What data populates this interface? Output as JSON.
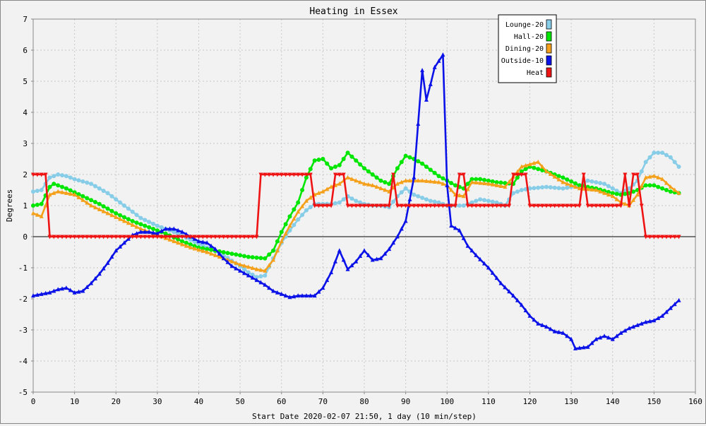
{
  "chart_data": {
    "type": "line",
    "title": "Heating in Essex",
    "xlabel": "Start Date 2020-02-07 21:50, 1 day (10 min/step)",
    "ylabel": "Degrees",
    "xlim": [
      0,
      160
    ],
    "ylim": [
      -5,
      7
    ],
    "x_ticks": [
      0,
      10,
      20,
      30,
      40,
      50,
      60,
      70,
      80,
      90,
      100,
      110,
      120,
      130,
      140,
      150,
      160
    ],
    "y_ticks": [
      -5,
      -4,
      -3,
      -2,
      -1,
      0,
      1,
      2,
      3,
      4,
      5,
      6,
      7
    ],
    "grid": true,
    "legend_position": "top-right",
    "series": [
      {
        "name": "Lounge-20",
        "color": "#87cde8",
        "marker": "circle",
        "points": [
          [
            0,
            1.45
          ],
          [
            2,
            1.5
          ],
          [
            4,
            1.9
          ],
          [
            6,
            2.0
          ],
          [
            8,
            1.95
          ],
          [
            10,
            1.85
          ],
          [
            14,
            1.7
          ],
          [
            18,
            1.4
          ],
          [
            22,
            1.0
          ],
          [
            26,
            0.6
          ],
          [
            30,
            0.35
          ],
          [
            34,
            0.15
          ],
          [
            38,
            -0.1
          ],
          [
            42,
            -0.35
          ],
          [
            46,
            -0.6
          ],
          [
            50,
            -0.95
          ],
          [
            52,
            -1.15
          ],
          [
            54,
            -1.3
          ],
          [
            56,
            -1.25
          ],
          [
            58,
            -0.7
          ],
          [
            60,
            -0.2
          ],
          [
            62,
            0.2
          ],
          [
            64,
            0.55
          ],
          [
            66,
            0.85
          ],
          [
            68,
            1.05
          ],
          [
            70,
            1.05
          ],
          [
            72,
            1.05
          ],
          [
            74,
            1.1
          ],
          [
            76,
            1.3
          ],
          [
            78,
            1.15
          ],
          [
            80,
            1.05
          ],
          [
            82,
            1.0
          ],
          [
            84,
            1.0
          ],
          [
            86,
            0.95
          ],
          [
            88,
            1.3
          ],
          [
            90,
            1.55
          ],
          [
            92,
            1.35
          ],
          [
            94,
            1.25
          ],
          [
            96,
            1.15
          ],
          [
            98,
            1.1
          ],
          [
            100,
            1.0
          ],
          [
            102,
            1.0
          ],
          [
            104,
            1.0
          ],
          [
            106,
            1.1
          ],
          [
            108,
            1.2
          ],
          [
            112,
            1.1
          ],
          [
            114,
            1.0
          ],
          [
            116,
            1.4
          ],
          [
            118,
            1.5
          ],
          [
            120,
            1.55
          ],
          [
            124,
            1.6
          ],
          [
            128,
            1.55
          ],
          [
            132,
            1.65
          ],
          [
            134,
            1.8
          ],
          [
            136,
            1.75
          ],
          [
            138,
            1.7
          ],
          [
            140,
            1.55
          ],
          [
            142,
            1.4
          ],
          [
            144,
            1.55
          ],
          [
            146,
            1.8
          ],
          [
            148,
            2.4
          ],
          [
            150,
            2.7
          ],
          [
            152,
            2.7
          ],
          [
            154,
            2.55
          ],
          [
            156,
            2.25
          ]
        ]
      },
      {
        "name": "Hall-20",
        "color": "#00e600",
        "marker": "circle",
        "points": [
          [
            0,
            1.0
          ],
          [
            2,
            1.05
          ],
          [
            4,
            1.6
          ],
          [
            5,
            1.7
          ],
          [
            8,
            1.55
          ],
          [
            12,
            1.3
          ],
          [
            16,
            1.05
          ],
          [
            20,
            0.75
          ],
          [
            24,
            0.5
          ],
          [
            28,
            0.3
          ],
          [
            32,
            0.1
          ],
          [
            36,
            -0.15
          ],
          [
            40,
            -0.35
          ],
          [
            44,
            -0.45
          ],
          [
            48,
            -0.55
          ],
          [
            52,
            -0.65
          ],
          [
            56,
            -0.7
          ],
          [
            58,
            -0.45
          ],
          [
            60,
            0.15
          ],
          [
            62,
            0.65
          ],
          [
            64,
            1.1
          ],
          [
            66,
            1.9
          ],
          [
            68,
            2.45
          ],
          [
            70,
            2.5
          ],
          [
            72,
            2.2
          ],
          [
            74,
            2.3
          ],
          [
            76,
            2.7
          ],
          [
            78,
            2.45
          ],
          [
            80,
            2.2
          ],
          [
            82,
            2.0
          ],
          [
            84,
            1.8
          ],
          [
            86,
            1.7
          ],
          [
            88,
            2.2
          ],
          [
            90,
            2.6
          ],
          [
            92,
            2.5
          ],
          [
            94,
            2.35
          ],
          [
            96,
            2.15
          ],
          [
            98,
            1.95
          ],
          [
            100,
            1.8
          ],
          [
            102,
            1.65
          ],
          [
            104,
            1.55
          ],
          [
            106,
            1.85
          ],
          [
            108,
            1.85
          ],
          [
            112,
            1.75
          ],
          [
            116,
            1.7
          ],
          [
            118,
            2.1
          ],
          [
            120,
            2.25
          ],
          [
            124,
            2.1
          ],
          [
            128,
            1.9
          ],
          [
            132,
            1.65
          ],
          [
            136,
            1.55
          ],
          [
            140,
            1.4
          ],
          [
            142,
            1.35
          ],
          [
            144,
            1.4
          ],
          [
            146,
            1.5
          ],
          [
            148,
            1.65
          ],
          [
            150,
            1.65
          ],
          [
            152,
            1.55
          ],
          [
            154,
            1.45
          ],
          [
            156,
            1.4
          ]
        ]
      },
      {
        "name": "Dining-20",
        "color": "#f5a01a",
        "marker": "triangle",
        "points": [
          [
            0,
            0.75
          ],
          [
            2,
            0.65
          ],
          [
            4,
            1.35
          ],
          [
            6,
            1.45
          ],
          [
            10,
            1.35
          ],
          [
            14,
            1.0
          ],
          [
            18,
            0.75
          ],
          [
            22,
            0.5
          ],
          [
            26,
            0.25
          ],
          [
            30,
            0.05
          ],
          [
            34,
            -0.15
          ],
          [
            38,
            -0.35
          ],
          [
            42,
            -0.5
          ],
          [
            46,
            -0.7
          ],
          [
            50,
            -0.9
          ],
          [
            54,
            -1.05
          ],
          [
            56,
            -1.1
          ],
          [
            58,
            -0.75
          ],
          [
            60,
            -0.15
          ],
          [
            62,
            0.35
          ],
          [
            64,
            0.8
          ],
          [
            66,
            1.15
          ],
          [
            68,
            1.35
          ],
          [
            70,
            1.45
          ],
          [
            72,
            1.6
          ],
          [
            74,
            1.7
          ],
          [
            76,
            1.9
          ],
          [
            78,
            1.8
          ],
          [
            80,
            1.7
          ],
          [
            82,
            1.65
          ],
          [
            84,
            1.55
          ],
          [
            86,
            1.45
          ],
          [
            88,
            1.7
          ],
          [
            90,
            1.8
          ],
          [
            94,
            1.8
          ],
          [
            98,
            1.75
          ],
          [
            100,
            1.65
          ],
          [
            102,
            1.35
          ],
          [
            104,
            1.3
          ],
          [
            106,
            1.75
          ],
          [
            110,
            1.7
          ],
          [
            114,
            1.6
          ],
          [
            118,
            2.25
          ],
          [
            122,
            2.4
          ],
          [
            124,
            2.1
          ],
          [
            128,
            1.75
          ],
          [
            132,
            1.55
          ],
          [
            136,
            1.5
          ],
          [
            140,
            1.3
          ],
          [
            142,
            1.1
          ],
          [
            144,
            1.0
          ],
          [
            146,
            1.35
          ],
          [
            148,
            1.9
          ],
          [
            150,
            1.95
          ],
          [
            152,
            1.85
          ],
          [
            154,
            1.6
          ],
          [
            156,
            1.4
          ]
        ]
      },
      {
        "name": "Outside-10",
        "color": "#0a12e8",
        "marker": "triangle",
        "points": [
          [
            0,
            -1.9
          ],
          [
            2,
            -1.85
          ],
          [
            4,
            -1.8
          ],
          [
            6,
            -1.7
          ],
          [
            8,
            -1.65
          ],
          [
            10,
            -1.8
          ],
          [
            12,
            -1.75
          ],
          [
            14,
            -1.5
          ],
          [
            16,
            -1.2
          ],
          [
            18,
            -0.85
          ],
          [
            20,
            -0.45
          ],
          [
            22,
            -0.2
          ],
          [
            24,
            0.05
          ],
          [
            26,
            0.15
          ],
          [
            28,
            0.15
          ],
          [
            30,
            0.1
          ],
          [
            32,
            0.25
          ],
          [
            34,
            0.25
          ],
          [
            36,
            0.15
          ],
          [
            38,
            0.0
          ],
          [
            40,
            -0.15
          ],
          [
            42,
            -0.2
          ],
          [
            44,
            -0.4
          ],
          [
            46,
            -0.7
          ],
          [
            48,
            -0.95
          ],
          [
            50,
            -1.1
          ],
          [
            52,
            -1.25
          ],
          [
            54,
            -1.4
          ],
          [
            56,
            -1.55
          ],
          [
            58,
            -1.75
          ],
          [
            60,
            -1.85
          ],
          [
            62,
            -1.95
          ],
          [
            64,
            -1.9
          ],
          [
            66,
            -1.9
          ],
          [
            68,
            -1.9
          ],
          [
            70,
            -1.65
          ],
          [
            72,
            -1.15
          ],
          [
            73,
            -0.8
          ],
          [
            74,
            -0.45
          ],
          [
            75,
            -0.75
          ],
          [
            76,
            -1.05
          ],
          [
            78,
            -0.8
          ],
          [
            80,
            -0.45
          ],
          [
            82,
            -0.75
          ],
          [
            84,
            -0.7
          ],
          [
            86,
            -0.4
          ],
          [
            88,
            0.0
          ],
          [
            90,
            0.5
          ],
          [
            92,
            1.9
          ],
          [
            94,
            5.35
          ],
          [
            95,
            4.4
          ],
          [
            96,
            4.9
          ],
          [
            97,
            5.45
          ],
          [
            99,
            5.85
          ],
          [
            100,
            1.65
          ],
          [
            101,
            0.35
          ],
          [
            103,
            0.2
          ],
          [
            105,
            -0.3
          ],
          [
            107,
            -0.6
          ],
          [
            110,
            -1.0
          ],
          [
            113,
            -1.5
          ],
          [
            116,
            -1.9
          ],
          [
            118,
            -2.2
          ],
          [
            120,
            -2.55
          ],
          [
            122,
            -2.8
          ],
          [
            124,
            -2.9
          ],
          [
            126,
            -3.05
          ],
          [
            128,
            -3.1
          ],
          [
            130,
            -3.3
          ],
          [
            131,
            -3.6
          ],
          [
            134,
            -3.55
          ],
          [
            136,
            -3.3
          ],
          [
            138,
            -3.2
          ],
          [
            140,
            -3.3
          ],
          [
            142,
            -3.1
          ],
          [
            144,
            -2.95
          ],
          [
            146,
            -2.85
          ],
          [
            148,
            -2.75
          ],
          [
            150,
            -2.7
          ],
          [
            152,
            -2.55
          ],
          [
            154,
            -2.3
          ],
          [
            156,
            -2.05
          ]
        ]
      },
      {
        "name": "Heat",
        "color": "#ef1414",
        "marker": "triangle-down",
        "points": [
          [
            0,
            2.0
          ],
          [
            3,
            2.0
          ],
          [
            4,
            0.0
          ],
          [
            54,
            0.0
          ],
          [
            55,
            2.0
          ],
          [
            67,
            2.0
          ],
          [
            68,
            1.0
          ],
          [
            72,
            1.0
          ],
          [
            73,
            2.0
          ],
          [
            75,
            2.0
          ],
          [
            76,
            1.0
          ],
          [
            86,
            1.0
          ],
          [
            87,
            2.0
          ],
          [
            88,
            1.0
          ],
          [
            102,
            1.0
          ],
          [
            103,
            2.0
          ],
          [
            104,
            2.0
          ],
          [
            105,
            1.0
          ],
          [
            115,
            1.0
          ],
          [
            116,
            2.0
          ],
          [
            119,
            2.0
          ],
          [
            120,
            1.0
          ],
          [
            132,
            1.0
          ],
          [
            133,
            2.0
          ],
          [
            134,
            1.0
          ],
          [
            142,
            1.0
          ],
          [
            143,
            2.0
          ],
          [
            144,
            1.0
          ],
          [
            145,
            2.0
          ],
          [
            146,
            2.0
          ],
          [
            147,
            1.0
          ],
          [
            148,
            0.0
          ],
          [
            156,
            0.0
          ]
        ]
      }
    ]
  }
}
